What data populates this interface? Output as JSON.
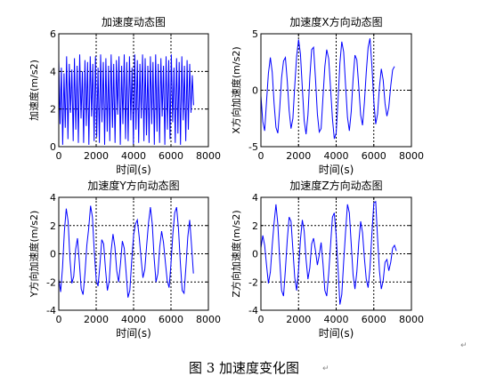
{
  "caption": "图 3  加速度变化图",
  "paragraph_mark": "↵",
  "colors": {
    "line": "#0000ff",
    "axis": "#000000",
    "grid": "#000000"
  },
  "chart_data": [
    {
      "type": "line",
      "title": "加速度动态图",
      "xlabel": "时间(s)",
      "ylabel": "加速度(m/s2)",
      "xlim": [
        0,
        8000
      ],
      "ylim": [
        0,
        6
      ],
      "xticks": [
        "0",
        "2000",
        "4000",
        "6000",
        "8000"
      ],
      "yticks": [
        "0",
        "2",
        "4",
        "6"
      ],
      "grid": true,
      "x": [
        0,
        70,
        140,
        210,
        280,
        350,
        420,
        490,
        560,
        630,
        700,
        770,
        840,
        910,
        980,
        1050,
        1120,
        1190,
        1260,
        1330,
        1400,
        1470,
        1540,
        1610,
        1680,
        1750,
        1820,
        1890,
        1960,
        2030,
        2100,
        2170,
        2240,
        2310,
        2380,
        2450,
        2520,
        2590,
        2660,
        2730,
        2800,
        2870,
        2940,
        3010,
        3080,
        3150,
        3220,
        3290,
        3360,
        3430,
        3500,
        3570,
        3640,
        3710,
        3780,
        3850,
        3920,
        3990,
        4060,
        4130,
        4200,
        4270,
        4340,
        4410,
        4480,
        4550,
        4620,
        4690,
        4760,
        4830,
        4900,
        4970,
        5040,
        5110,
        5180,
        5250,
        5320,
        5390,
        5460,
        5530,
        5600,
        5670,
        5740,
        5810,
        5880,
        5950,
        6020,
        6090,
        6160,
        6230,
        6300,
        6370,
        6440,
        6510,
        6580,
        6650,
        6720,
        6790,
        6860,
        6930,
        7000,
        7070,
        7140,
        7210
      ],
      "y": [
        4.6,
        1.2,
        4.2,
        0.1,
        3.9,
        1.0,
        4.8,
        0.4,
        4.4,
        1.8,
        4.1,
        0.3,
        4.7,
        0.9,
        4.3,
        0.2,
        4.9,
        1.5,
        4.0,
        0.2,
        4.6,
        1.1,
        4.5,
        0.1,
        4.8,
        1.6,
        4.4,
        0.3,
        4.8,
        0.5,
        4.2,
        0.2,
        4.9,
        1.3,
        4.5,
        0.1,
        4.7,
        0.8,
        4.3,
        0.3,
        4.9,
        1.0,
        4.4,
        0.2,
        4.6,
        1.7,
        4.8,
        0.1,
        4.3,
        1.2,
        4.9,
        0.4,
        4.5,
        0.3,
        4.8,
        1.4,
        4.2,
        0.1,
        4.9,
        0.9,
        4.6,
        0.2,
        4.4,
        1.5,
        4.9,
        0.3,
        4.7,
        0.6,
        4.3,
        0.2,
        4.8,
        1.2,
        4.5,
        0.1,
        4.9,
        0.8,
        4.4,
        0.2,
        4.7,
        1.6,
        4.3,
        0.1,
        4.8,
        0.9,
        4.6,
        0.4,
        4.9,
        1.3,
        4.2,
        0.2,
        4.7,
        0.7,
        4.5,
        0.1,
        4.8,
        1.4,
        4.3,
        0.3,
        4.6,
        0.9,
        4.4,
        1.8,
        3.8,
        2.2
      ]
    },
    {
      "type": "line",
      "title": "加速度X方向动态图",
      "xlabel": "时间(s)",
      "ylabel": "X方向加速度(m/s2)",
      "xlim": [
        0,
        8000
      ],
      "ylim": [
        -5,
        5
      ],
      "xticks": [
        "0",
        "2000",
        "4000",
        "6000",
        "8000"
      ],
      "yticks": [
        "-5",
        "0",
        "5"
      ],
      "grid": true,
      "x": [
        0,
        100,
        200,
        300,
        400,
        500,
        600,
        700,
        800,
        900,
        1000,
        1100,
        1200,
        1300,
        1400,
        1500,
        1600,
        1700,
        1800,
        1900,
        2000,
        2100,
        2200,
        2300,
        2400,
        2500,
        2600,
        2700,
        2800,
        2900,
        3000,
        3100,
        3200,
        3300,
        3400,
        3500,
        3600,
        3700,
        3800,
        3900,
        4000,
        4100,
        4200,
        4300,
        4400,
        4500,
        4600,
        4700,
        4800,
        4900,
        5000,
        5100,
        5200,
        5300,
        5400,
        5500,
        5600,
        5700,
        5800,
        5900,
        6000,
        6100,
        6200,
        6300,
        6400,
        6500,
        6600,
        6700,
        6800,
        6900,
        7000,
        7100
      ],
      "y": [
        -0.5,
        -2.8,
        -3.6,
        -1.0,
        1.5,
        2.9,
        1.6,
        -1.2,
        -3.3,
        -3.8,
        -1.6,
        1.1,
        2.6,
        2.9,
        0.8,
        -1.8,
        -3.4,
        -2.5,
        0.4,
        3.0,
        4.5,
        3.2,
        0.2,
        -2.7,
        -3.9,
        -2.2,
        1.1,
        3.6,
        3.8,
        1.0,
        -2.1,
        -3.7,
        -3.4,
        -0.6,
        2.1,
        3.6,
        2.8,
        0.2,
        -2.5,
        -4.3,
        -3.8,
        -0.9,
        2.4,
        4.3,
        3.4,
        0.4,
        -2.4,
        -3.6,
        -1.9,
        1.0,
        3.1,
        2.7,
        0.3,
        -2.2,
        -3.1,
        -1.1,
        1.6,
        3.8,
        4.6,
        2.2,
        -1.0,
        -3.0,
        -2.1,
        0.3,
        1.9,
        0.9,
        -1.2,
        -2.3,
        -1.5,
        0.4,
        1.8,
        2.1
      ]
    },
    {
      "type": "line",
      "title": "加速度Y方向动态图",
      "xlabel": "时间(s)",
      "ylabel": "Y方向加速度(m/s2)",
      "xlim": [
        0,
        8000
      ],
      "ylim": [
        -4,
        4
      ],
      "xticks": [
        "0",
        "2000",
        "4000",
        "6000",
        "8000"
      ],
      "yticks": [
        "-4",
        "-2",
        "0",
        "2",
        "4"
      ],
      "grid": true,
      "x": [
        0,
        100,
        200,
        300,
        400,
        500,
        600,
        700,
        800,
        900,
        1000,
        1100,
        1200,
        1300,
        1400,
        1500,
        1600,
        1700,
        1800,
        1900,
        2000,
        2100,
        2200,
        2300,
        2400,
        2500,
        2600,
        2700,
        2800,
        2900,
        3000,
        3100,
        3200,
        3300,
        3400,
        3500,
        3600,
        3700,
        3800,
        3900,
        4000,
        4100,
        4200,
        4300,
        4400,
        4500,
        4600,
        4700,
        4800,
        4900,
        5000,
        5100,
        5200,
        5300,
        5400,
        5500,
        5600,
        5700,
        5800,
        5900,
        6000,
        6100,
        6200,
        6300,
        6400,
        6500,
        6600,
        6700,
        6800,
        6900,
        7000,
        7100,
        7200
      ],
      "y": [
        -1.8,
        -2.7,
        -1.0,
        1.6,
        3.2,
        2.3,
        -0.4,
        -2.1,
        -1.6,
        0.3,
        1.1,
        -0.6,
        -2.5,
        -2.9,
        -1.4,
        0.6,
        1.8,
        3.4,
        2.6,
        0.1,
        -1.8,
        -2.3,
        -0.8,
        1.0,
        0.7,
        -1.1,
        -2.6,
        -1.9,
        0.2,
        1.4,
        0.5,
        -1.2,
        -2.0,
        -0.7,
        0.9,
        0.4,
        -1.3,
        -3.1,
        -2.6,
        -0.5,
        1.3,
        2.1,
        2.4,
        1.2,
        -0.3,
        -1.7,
        -1.1,
        0.6,
        2.2,
        3.3,
        2.1,
        -0.3,
        -2.0,
        -1.4,
        0.5,
        1.6,
        0.8,
        -0.6,
        -1.9,
        -2.4,
        -0.7,
        1.4,
        2.9,
        3.3,
        1.8,
        -0.6,
        -2.6,
        -2.8,
        -0.9,
        1.2,
        2.4,
        0.6,
        -1.4
      ]
    },
    {
      "type": "line",
      "title": "加速度Z方向动态图",
      "xlabel": "时间(s)",
      "ylabel": "Z方向加速度(m/s2)",
      "xlim": [
        0,
        8000
      ],
      "ylim": [
        -4,
        4
      ],
      "xticks": [
        "0",
        "2000",
        "4000",
        "6000",
        "8000"
      ],
      "yticks": [
        "-4",
        "-2",
        "0",
        "2",
        "4"
      ],
      "grid": true,
      "x": [
        0,
        100,
        200,
        300,
        400,
        500,
        600,
        700,
        800,
        900,
        1000,
        1100,
        1200,
        1300,
        1400,
        1500,
        1600,
        1700,
        1800,
        1900,
        2000,
        2100,
        2200,
        2300,
        2400,
        2500,
        2600,
        2700,
        2800,
        2900,
        3000,
        3100,
        3200,
        3300,
        3400,
        3500,
        3600,
        3700,
        3800,
        3900,
        4000,
        4100,
        4200,
        4300,
        4400,
        4500,
        4600,
        4700,
        4800,
        4900,
        5000,
        5100,
        5200,
        5300,
        5400,
        5500,
        5600,
        5700,
        5800,
        5900,
        6000,
        6100,
        6200,
        6300,
        6400,
        6500,
        6600,
        6700,
        6800,
        6900,
        7000,
        7100,
        7200
      ],
      "y": [
        0.4,
        1.3,
        0.6,
        -0.8,
        -2.1,
        -1.3,
        0.6,
        2.2,
        3.5,
        2.1,
        -0.4,
        -2.6,
        -3.0,
        -1.1,
        1.0,
        2.6,
        2.3,
        0.3,
        -1.7,
        -2.6,
        -1.1,
        1.0,
        2.4,
        1.6,
        -0.4,
        -1.8,
        -1.0,
        0.7,
        1.1,
        0.2,
        -0.8,
        -0.1,
        0.8,
        -0.7,
        -2.6,
        -3.0,
        -1.4,
        0.6,
        2.6,
        2.9,
        1.3,
        -1.0,
        -3.6,
        -2.9,
        -0.6,
        1.6,
        3.5,
        2.9,
        0.7,
        -1.5,
        -2.5,
        -1.3,
        0.8,
        2.3,
        1.5,
        -0.3,
        -1.8,
        -2.4,
        -1.0,
        1.4,
        3.6,
        3.7,
        1.1,
        -1.2,
        -2.5,
        -1.9,
        -0.6,
        -0.4,
        -1.2,
        -0.6,
        0.4,
        0.6,
        0.2
      ]
    }
  ]
}
